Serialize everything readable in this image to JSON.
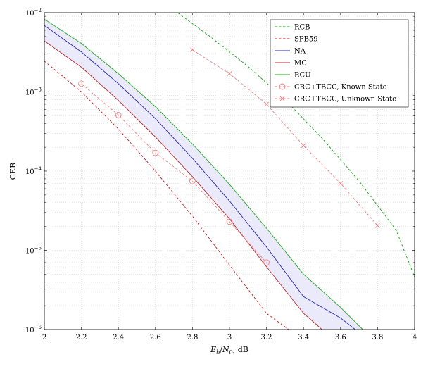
{
  "chart_data": {
    "type": "line",
    "xlabel": "Eb/N0, dB",
    "ylabel": "CER",
    "xlim": [
      2,
      4
    ],
    "ylim": [
      1e-06,
      0.01
    ],
    "yscale": "log",
    "grid": true,
    "legend_position": "top-right",
    "x_ticks": [
      2,
      2.2,
      2.4,
      2.6,
      2.8,
      3,
      3.2,
      3.4,
      3.6,
      3.8,
      4
    ],
    "x_tick_labels": [
      "2",
      "2.2",
      "2.4",
      "2.6",
      "2.8",
      "3",
      "3.2",
      "3.4",
      "3.6",
      "3.8",
      "4"
    ],
    "y_ticks": [
      1e-06,
      1e-05,
      0.0001,
      0.001,
      0.01
    ],
    "y_tick_labels": [
      {
        "base": "10",
        "exp": "−6"
      },
      {
        "base": "10",
        "exp": "−5"
      },
      {
        "base": "10",
        "exp": "−4"
      },
      {
        "base": "10",
        "exp": "−3"
      },
      {
        "base": "10",
        "exp": "−2"
      }
    ],
    "shaded_region": {
      "between": [
        "MC",
        "RCU"
      ],
      "color": "#e8e8fb"
    },
    "series": [
      {
        "name": "RCB",
        "color": "#1aa31a",
        "style": "dashed",
        "marker": "none",
        "x": [
          2.72,
          2.9,
          3.1,
          3.3,
          3.5,
          3.7,
          3.9,
          4.0
        ],
        "y": [
          0.01,
          0.0049,
          0.0021,
          0.0008,
          0.00026,
          7.5e-05,
          1.8e-05,
          4.6e-06
        ]
      },
      {
        "name": "SPB59",
        "color": "#c42020",
        "style": "dashed",
        "marker": "none",
        "x": [
          2.0,
          2.2,
          2.4,
          2.6,
          2.8,
          3.0,
          3.2,
          3.32
        ],
        "y": [
          0.00245,
          0.001,
          0.00034,
          0.0001,
          2.7e-05,
          6.5e-06,
          1.6e-06,
          1e-06
        ]
      },
      {
        "name": "NA",
        "color": "#2a2aa8",
        "style": "solid",
        "marker": "none",
        "x": [
          2.0,
          2.2,
          2.4,
          2.6,
          2.8,
          3.0,
          3.2,
          3.4,
          3.6,
          3.68
        ],
        "y": [
          0.0069,
          0.0032,
          0.00127,
          0.00046,
          0.000145,
          4.2e-05,
          1.1e-05,
          2.6e-06,
          1.4e-06,
          1e-06
        ]
      },
      {
        "name": "MC",
        "color": "#b52a2a",
        "style": "solid",
        "marker": "none",
        "x": [
          2.0,
          2.2,
          2.4,
          2.6,
          2.8,
          3.0,
          3.2,
          3.4,
          3.5
        ],
        "y": [
          0.0044,
          0.00205,
          0.00078,
          0.00027,
          8.5e-05,
          2.5e-05,
          6.2e-06,
          1.6e-06,
          1e-06
        ]
      },
      {
        "name": "RCU",
        "color": "#22a822",
        "style": "solid",
        "marker": "none",
        "x": [
          2.0,
          2.2,
          2.4,
          2.6,
          2.8,
          3.0,
          3.2,
          3.4,
          3.6,
          3.72
        ],
        "y": [
          0.0083,
          0.0041,
          0.0017,
          0.00065,
          0.00022,
          6.8e-05,
          1.9e-05,
          5e-06,
          1.9e-06,
          1e-06
        ]
      },
      {
        "name": "CRC+TBCC, Known State",
        "color": "#f08080",
        "style": "dashed",
        "marker": "circle",
        "x": [
          2.2,
          2.4,
          2.6,
          2.8,
          3.0,
          3.2
        ],
        "y": [
          0.00127,
          0.00051,
          0.00017,
          7.5e-05,
          2.3e-05,
          7e-06
        ]
      },
      {
        "name": "CRC+TBCC, Unknown State",
        "color": "#f08080",
        "style": "dashed",
        "marker": "x",
        "x": [
          2.8,
          3.0,
          3.2,
          3.4,
          3.6,
          3.8
        ],
        "y": [
          0.0034,
          0.0017,
          0.0007,
          0.00021,
          7e-05,
          2.05e-05
        ]
      }
    ]
  }
}
